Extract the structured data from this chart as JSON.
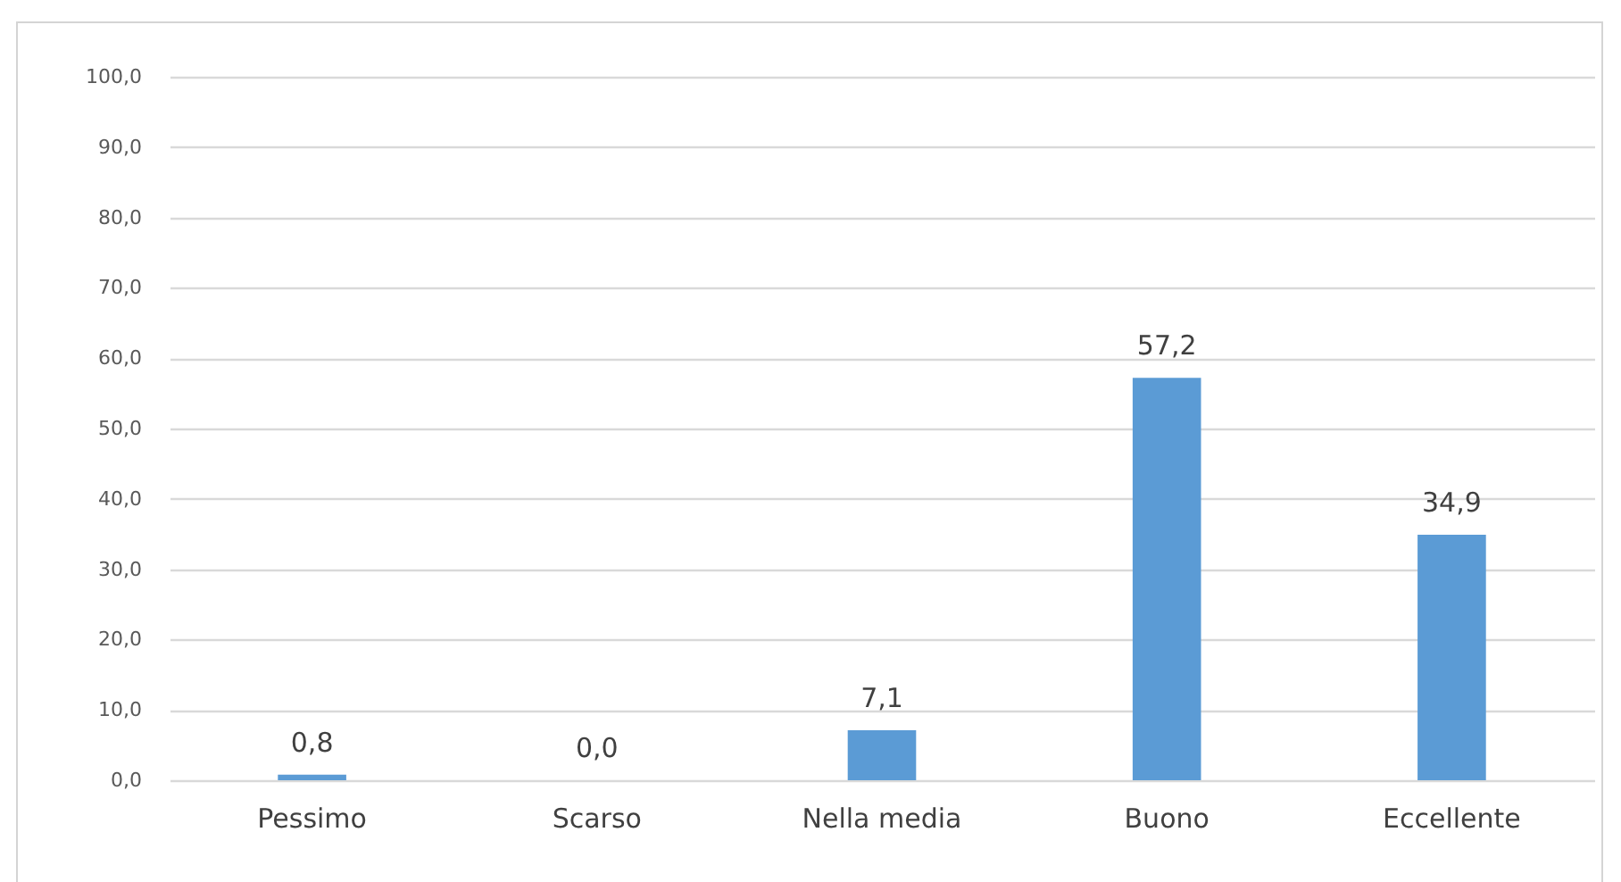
{
  "chart_data": {
    "type": "bar",
    "categories": [
      "Pessimo",
      "Scarso",
      "Nella media",
      "Buono",
      "Eccellente"
    ],
    "values": [
      0.8,
      0.0,
      7.1,
      57.2,
      34.9
    ],
    "value_labels": [
      "0,8",
      "0,0",
      "7,1",
      "57,2",
      "34,9"
    ],
    "color": "#5b9bd5",
    "ylim": [
      0,
      100
    ],
    "yticks": [
      {
        "value": 0,
        "label": "0,0"
      },
      {
        "value": 10,
        "label": "10,0"
      },
      {
        "value": 20,
        "label": "20,0"
      },
      {
        "value": 30,
        "label": "30,0"
      },
      {
        "value": 40,
        "label": "40,0"
      },
      {
        "value": 50,
        "label": "50,0"
      },
      {
        "value": 60,
        "label": "60,0"
      },
      {
        "value": 70,
        "label": "70,0"
      },
      {
        "value": 80,
        "label": "80,0"
      },
      {
        "value": 90,
        "label": "90,0"
      },
      {
        "value": 100,
        "label": "100,0"
      }
    ],
    "grid": "y"
  }
}
